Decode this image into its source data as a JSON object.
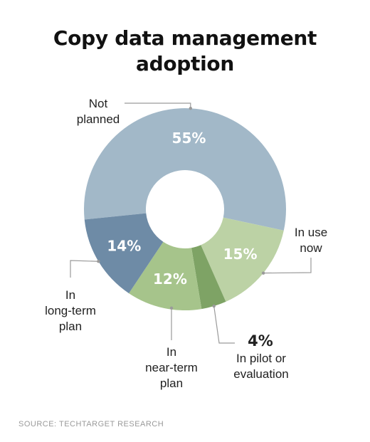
{
  "chart_data": {
    "type": "pie",
    "title_lines": [
      "Copy data management",
      "adoption"
    ],
    "slices": [
      {
        "label_lines": [
          "Not",
          "planned"
        ],
        "value": 55,
        "value_label": "55%",
        "color": "#a2b8c8"
      },
      {
        "label_lines": [
          "In use",
          "now"
        ],
        "value": 15,
        "value_label": "15%",
        "color": "#bcd2a5"
      },
      {
        "label_lines": [
          "In pilot or",
          "evaluation"
        ],
        "value": 4,
        "value_label": "4%",
        "color": "#7ea365"
      },
      {
        "label_lines": [
          "In",
          "near-term",
          "plan"
        ],
        "value": 12,
        "value_label": "12%",
        "color": "#a6c48b"
      },
      {
        "label_lines": [
          "In",
          "long-term",
          "plan"
        ],
        "value": 14,
        "value_label": "14%",
        "color": "#6e8ba6"
      }
    ],
    "source": "SOURCE: TECHTARGET RESEARCH"
  }
}
